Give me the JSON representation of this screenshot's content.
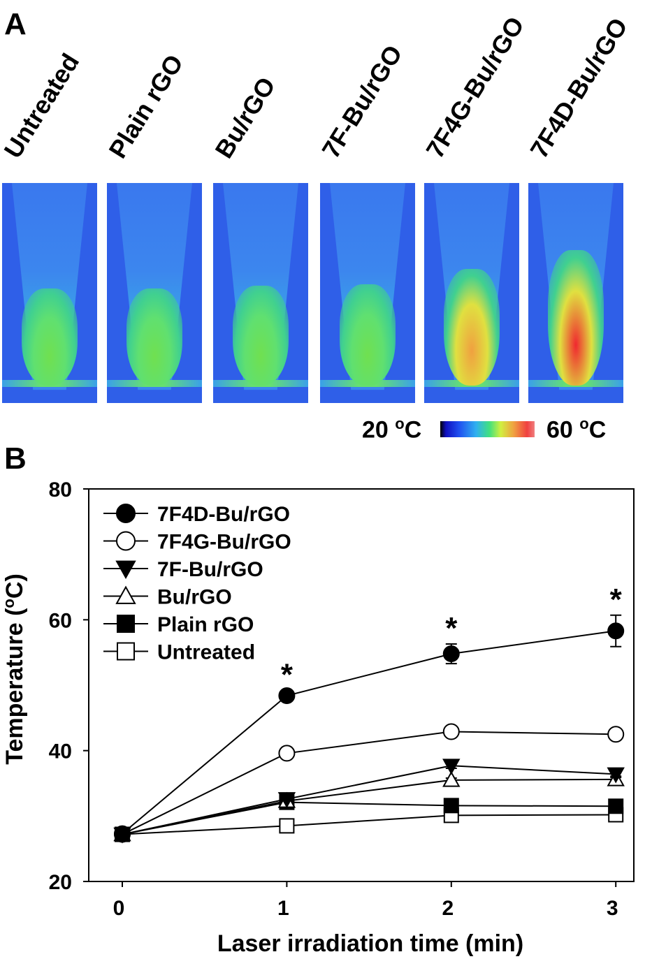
{
  "panel_a": {
    "letter": "A",
    "images": [
      {
        "label": "Untreated",
        "heat": 0.45
      },
      {
        "label": "Plain rGO",
        "heat": 0.45
      },
      {
        "label": "Bu/rGO",
        "heat": 0.48
      },
      {
        "label": "7F-Bu/rGO",
        "heat": 0.5
      },
      {
        "label": "7F4G-Bu/rGO",
        "heat": 0.7
      },
      {
        "label": "7F4D-Bu/rGO",
        "heat": 0.95
      }
    ],
    "scale": {
      "min_value": "20",
      "max_value": "60",
      "unit_sup": "o",
      "unit": "C"
    }
  },
  "panel_b": {
    "letter": "B"
  },
  "chart_data": {
    "type": "line",
    "xlabel": "Laser irradiation time (min)",
    "ylabel": "Temperature (oC)",
    "xlim": [
      -0.3,
      3.1
    ],
    "ylim": [
      20,
      80
    ],
    "xticks": [
      "0",
      "1",
      "2",
      "3"
    ],
    "yticks": [
      "20",
      "40",
      "60",
      "80"
    ],
    "x": [
      0,
      1,
      2,
      3
    ],
    "legend_position": "top-left",
    "series": [
      {
        "name": "7F4D-Bu/rGO",
        "marker": "circle-filled",
        "values": [
          27.3,
          48.4,
          54.8,
          58.3
        ],
        "errors": [
          0.3,
          0.8,
          1.5,
          2.4
        ],
        "significance": [
          "",
          "*",
          "*",
          "*"
        ]
      },
      {
        "name": "7F4G-Bu/rGO",
        "marker": "circle-open",
        "values": [
          27.2,
          39.6,
          42.9,
          42.5
        ],
        "errors": [
          0.3,
          0.4,
          0.6,
          0.3
        ]
      },
      {
        "name": "7F-Bu/rGO",
        "marker": "triangle-down-filled",
        "values": [
          27.2,
          32.6,
          37.7,
          36.4
        ],
        "errors": [
          0.2,
          0.3,
          0.4,
          0.3
        ]
      },
      {
        "name": "Bu/rGO",
        "marker": "triangle-up-open",
        "values": [
          27.2,
          32.3,
          35.5,
          35.6
        ],
        "errors": [
          0.2,
          0.3,
          0.3,
          0.3
        ]
      },
      {
        "name": "Plain rGO",
        "marker": "square-filled",
        "values": [
          27.2,
          32.1,
          31.6,
          31.5
        ],
        "errors": [
          0.2,
          0.3,
          0.2,
          0.2
        ]
      },
      {
        "name": "Untreated",
        "marker": "square-open",
        "values": [
          27.2,
          28.5,
          30.1,
          30.2
        ],
        "errors": [
          0.2,
          0.2,
          0.2,
          0.2
        ]
      }
    ]
  }
}
